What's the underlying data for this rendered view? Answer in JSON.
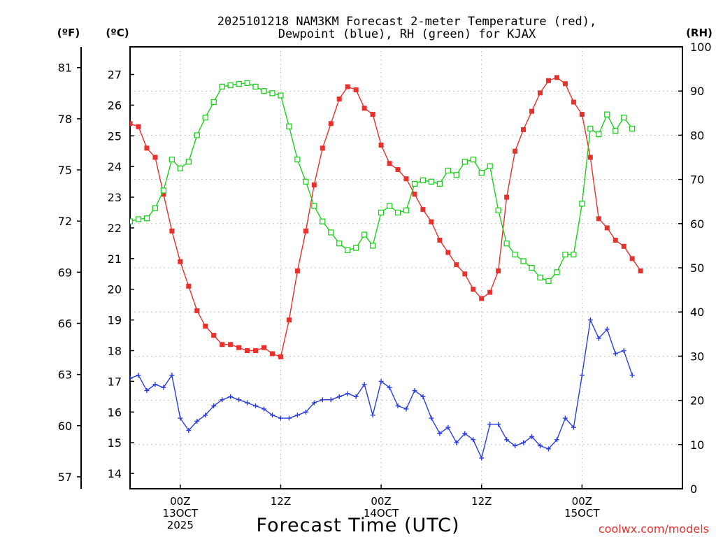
{
  "chart_data": {
    "type": "line",
    "title_line1": "2025101218 NAM3KM Forecast 2-meter Temperature (red),",
    "title_line2": "Dewpoint (blue), RH (green) for KJAX",
    "xlabel": "Forecast Time (UTC)",
    "unit_labels": {
      "fahrenheit": "(ºF)",
      "celsius": "(ºC)",
      "rh": "(RH)"
    },
    "watermark": "coolwx.com/models",
    "x_hours_range": [
      18,
      84
    ],
    "celsius_range": [
      13.5,
      27.9
    ],
    "rh_range": [
      0,
      100
    ],
    "fahrenheit_ticks": [
      "57",
      "60",
      "63",
      "66",
      "69",
      "72",
      "75",
      "78",
      "81"
    ],
    "celsius_ticks": [
      "14",
      "15",
      "16",
      "17",
      "18",
      "19",
      "20",
      "21",
      "22",
      "23",
      "24",
      "25",
      "26",
      "27"
    ],
    "rh_ticks": [
      "0",
      "10",
      "20",
      "30",
      "40",
      "50",
      "60",
      "70",
      "80",
      "90",
      "100"
    ],
    "time_ticks": [
      {
        "hour": 24,
        "line1": "00Z",
        "line2": "13OCT",
        "line3": "2025"
      },
      {
        "hour": 36,
        "line1": "12Z",
        "line2": "",
        "line3": ""
      },
      {
        "hour": 48,
        "line1": "00Z",
        "line2": "14OCT",
        "line3": ""
      },
      {
        "hour": 60,
        "line1": "12Z",
        "line2": "",
        "line3": ""
      },
      {
        "hour": 72,
        "line1": "00Z",
        "line2": "15OCT",
        "line3": ""
      }
    ],
    "series": [
      {
        "name": "Temperature",
        "unit": "C",
        "color": "#e8302c",
        "values": [
          25.4,
          25.3,
          24.6,
          24.3,
          23.1,
          21.9,
          20.9,
          20.1,
          19.3,
          18.8,
          18.5,
          18.2,
          18.2,
          18.1,
          18.0,
          18.0,
          18.1,
          17.9,
          17.8,
          19.0,
          20.6,
          21.9,
          23.4,
          24.6,
          25.4,
          26.2,
          26.6,
          26.5,
          25.9,
          25.7,
          24.7,
          24.1,
          23.9,
          23.6,
          23.1,
          22.6,
          22.2,
          21.6,
          21.2,
          20.8,
          20.5,
          20.0,
          19.7,
          19.9,
          20.6,
          23.0,
          24.5,
          25.2,
          25.8,
          26.4,
          26.8,
          26.9,
          26.7,
          26.1,
          25.7,
          24.3,
          22.3,
          22.0,
          21.6,
          21.4,
          21.0,
          20.6
        ],
        "x_start": 18,
        "x_step": 1
      },
      {
        "name": "Dewpoint",
        "unit": "C",
        "color": "#2a3ee0",
        "values": [
          17.1,
          17.2,
          16.7,
          16.9,
          16.8,
          17.2,
          15.8,
          15.4,
          15.7,
          15.9,
          16.2,
          16.4,
          16.5,
          16.4,
          16.3,
          16.2,
          16.1,
          15.9,
          15.8,
          15.8,
          15.9,
          16.0,
          16.3,
          16.4,
          16.4,
          16.5,
          16.6,
          16.5,
          16.9,
          15.9,
          17.0,
          16.8,
          16.2,
          16.1,
          16.7,
          16.5,
          15.8,
          15.3,
          15.5,
          15.0,
          15.3,
          15.1,
          14.5,
          15.6,
          15.6,
          15.1,
          14.9,
          15.0,
          15.2,
          14.9,
          14.8,
          15.1,
          15.8,
          15.5,
          17.2,
          19.0,
          18.4,
          18.7,
          17.9,
          18.0,
          17.2
        ],
        "x_start": 18,
        "x_step": 1
      },
      {
        "name": "RH",
        "unit": "%",
        "color": "#1ed01e",
        "values": [
          60.5,
          61.0,
          61.2,
          63.5,
          67.5,
          74.5,
          72.5,
          74.0,
          80.0,
          84.0,
          87.5,
          91.0,
          91.3,
          91.6,
          91.8,
          91.0,
          90.0,
          89.5,
          89.0,
          82.0,
          74.5,
          69.5,
          64.0,
          60.5,
          58.0,
          55.5,
          54.0,
          54.5,
          57.5,
          55.0,
          62.5,
          64.0,
          62.5,
          63.0,
          69.0,
          69.8,
          69.5,
          69.0,
          72.0,
          71.0,
          74.0,
          74.5,
          71.5,
          73.0,
          63.0,
          55.5,
          53.0,
          51.5,
          50.0,
          47.8,
          47.0,
          49.0,
          53.0,
          53.0,
          64.5,
          81.5,
          80.2,
          84.7,
          81.0,
          84.0,
          81.5
        ],
        "x_start": 18,
        "x_step": 1
      }
    ]
  }
}
